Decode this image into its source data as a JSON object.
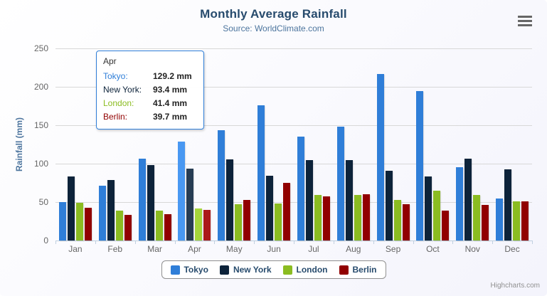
{
  "chart_data": {
    "type": "bar",
    "orientation": "vertical",
    "title": "Monthly Average Rainfall",
    "subtitle": "Source: WorldClimate.com",
    "xlabel": "",
    "ylabel": "Rainfall (mm)",
    "ylim": [
      0,
      250
    ],
    "yticks": [
      0,
      50,
      100,
      150,
      200,
      250
    ],
    "grid": true,
    "legend_position": "bottom",
    "hovered_category": "Apr",
    "categories": [
      "Jan",
      "Feb",
      "Mar",
      "Apr",
      "May",
      "Jun",
      "Jul",
      "Aug",
      "Sep",
      "Oct",
      "Nov",
      "Dec"
    ],
    "series": [
      {
        "name": "Tokyo",
        "color": "#2f7ed8",
        "values": [
          49.9,
          71.5,
          106.4,
          129.2,
          144.0,
          176.0,
          135.6,
          148.5,
          216.4,
          194.1,
          95.6,
          54.4
        ]
      },
      {
        "name": "New York",
        "color": "#0d233a",
        "values": [
          83.6,
          78.8,
          98.5,
          93.4,
          106.0,
          84.5,
          105.0,
          104.3,
          91.2,
          83.5,
          106.6,
          92.3
        ]
      },
      {
        "name": "London",
        "color": "#8bbc21",
        "values": [
          48.9,
          38.8,
          39.3,
          41.4,
          47.0,
          48.3,
          59.0,
          59.6,
          52.4,
          65.2,
          59.3,
          51.2
        ]
      },
      {
        "name": "Berlin",
        "color": "#910000",
        "values": [
          42.4,
          33.2,
          34.5,
          39.7,
          52.6,
          75.5,
          57.4,
          60.4,
          47.6,
          39.1,
          46.8,
          51.1
        ]
      }
    ]
  },
  "tooltip": {
    "header": "Apr",
    "border_color": "#2f7ed8",
    "rows": [
      {
        "label": "Tokyo:",
        "value": "129.2 mm",
        "color": "#2f7ed8"
      },
      {
        "label": "New York:",
        "value": "93.4 mm",
        "color": "#0d233a"
      },
      {
        "label": "London:",
        "value": "41.4 mm",
        "color": "#8bbc21"
      },
      {
        "label": "Berlin:",
        "value": "39.7 mm",
        "color": "#910000"
      }
    ]
  },
  "credits": "Highcharts.com",
  "icons": {
    "export_menu": "hamburger-icon"
  },
  "colors": {
    "title": "#274b6d",
    "subtitle": "#4d759e",
    "axis_title": "#4d759e",
    "axis_labels": "#666666",
    "grid_line": "#d8d8d8",
    "axis_line": "#c0d0e0",
    "legend_text": "#274b6d",
    "legend_border": "#909090",
    "credits": "#909090"
  }
}
